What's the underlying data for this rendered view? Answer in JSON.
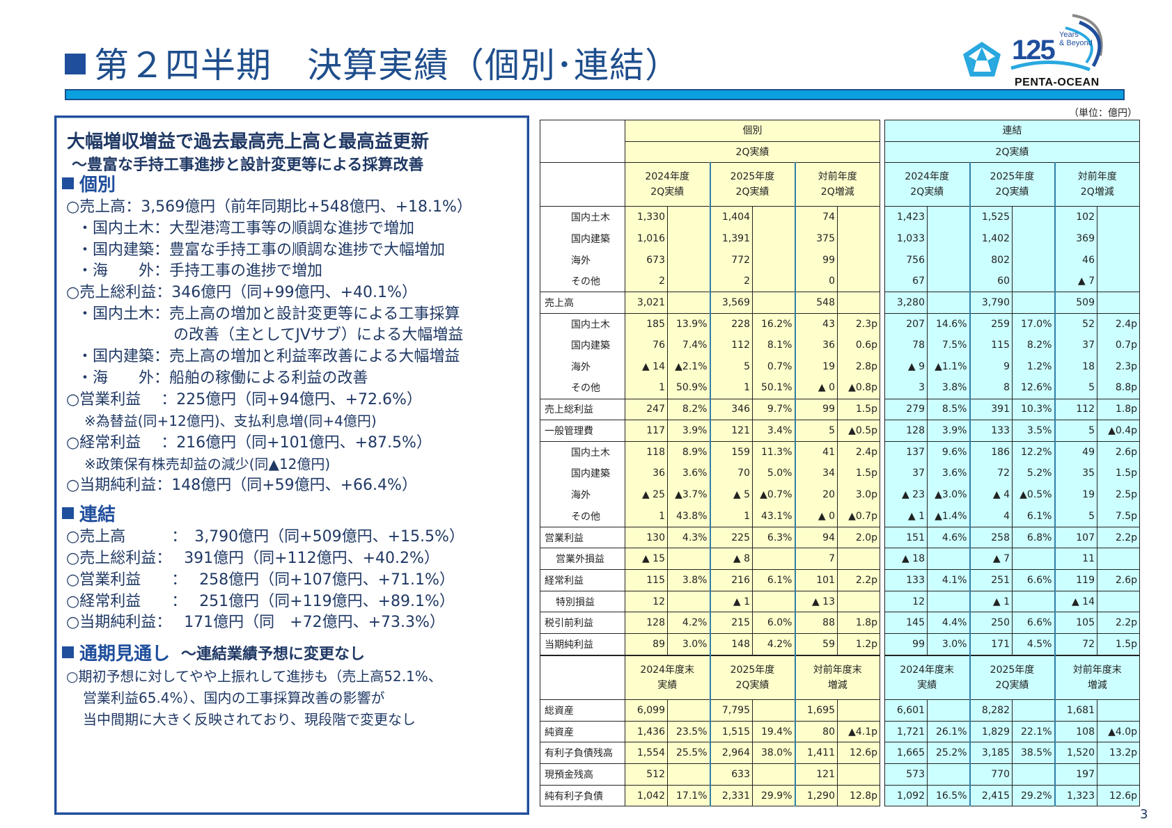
{
  "header": {
    "title": "第２四半期　決算実績（個別･連結）",
    "logo": {
      "number": "125",
      "tagline_1": "Years",
      "tagline_2": "& Beyond",
      "company": "PENTA-OCEAN"
    }
  },
  "summary": {
    "headline": "大幅増収増益で過去最高売上高と最高益更新",
    "subline": "～豊富な手持工事進捗と設計変更等による採算改善",
    "sections": [
      {
        "title": "個別",
        "lines": [
          "○売上高：3,569億円（前年同期比+548億円、+18.1%）",
          "・国内土木：大型港湾工事等の順調な進捗で増加",
          "・国内建築：豊富な手持工事の順調な進捗で大幅増加",
          "・海　　外：手持工事の進捗で増加",
          "○売上総利益：346億円（同+99億円、+40.1%）",
          "・国内土木：売上高の増加と設計変更等による工事採算",
          "の改善（主としてJVサブ）による大幅増益",
          "・国内建築：売上高の増加と利益率改善による大幅増益",
          "・海　　外：船舶の稼働による利益の改善",
          "○営業利益　 ：225億円（同+94億円、+72.6%）",
          "※為替益(同+12億円)、支払利息増(同+4億円)",
          "○経常利益　 ：216億円（同+101億円、+87.5%）",
          "※政策保有株売却益の減少(同▲12億円)",
          "○当期純利益：148億円（同+59億円、+66.4%）"
        ]
      },
      {
        "title": "連結",
        "lines": [
          "○売上高　　　：　3,790億円（同+509億円、+15.5%）",
          "○売上総利益：　   391億円（同+112億円、+40.2%）",
          "○営業利益　　：　   258億円（同+107億円、+71.1%）",
          "○経常利益　　：　   251億円（同+119億円、+89.1%）",
          "○当期純利益：　   171億円（同　+72億円、+73.3%）"
        ]
      },
      {
        "title": "通期見通し",
        "title_extra": "～連結業績予想に変更なし",
        "lines": [
          "○期初予想に対してやや上振れして進捗も（売上高52.1%、",
          "営業利益65.4%）、国内の工事採算改善の影響が",
          "当中間期に大きく反映されており、現段階で変更なし"
        ]
      }
    ]
  },
  "table": {
    "unit": "（単位：億円）",
    "group_nonconsolidated": "個別",
    "group_consolidated": "連結",
    "period_label": "2Q実績",
    "col_headers": [
      [
        "2024年度",
        "2Q実績"
      ],
      [
        "2025年度",
        "2Q実績"
      ],
      [
        "対前年度",
        "2Q増減"
      ]
    ],
    "bs_col_headers": [
      [
        "2024年度末",
        "実績"
      ],
      [
        "2025年度",
        "2Q実績"
      ],
      [
        "対前年度末",
        "増減"
      ]
    ],
    "rows": [
      {
        "label": "国内土木",
        "indent": 2,
        "nc": [
          "1,330",
          "",
          "1,404",
          "",
          "74",
          ""
        ],
        "c": [
          "1,423",
          "",
          "1,525",
          "",
          "102",
          ""
        ]
      },
      {
        "label": "国内建築",
        "indent": 2,
        "nc": [
          "1,016",
          "",
          "1,391",
          "",
          "375",
          ""
        ],
        "c": [
          "1,033",
          "",
          "1,402",
          "",
          "369",
          ""
        ]
      },
      {
        "label": "海外",
        "indent": 2,
        "nc": [
          "673",
          "",
          "772",
          "",
          "99",
          ""
        ],
        "c": [
          "756",
          "",
          "802",
          "",
          "46",
          ""
        ]
      },
      {
        "label": "その他",
        "indent": 2,
        "nc": [
          "2",
          "",
          "2",
          "",
          "0",
          ""
        ],
        "c": [
          "67",
          "",
          "60",
          "",
          "▲ 7",
          ""
        ]
      },
      {
        "label": "売上高",
        "indent": 0,
        "nc": [
          "3,021",
          "",
          "3,569",
          "",
          "548",
          ""
        ],
        "c": [
          "3,280",
          "",
          "3,790",
          "",
          "509",
          ""
        ]
      },
      {
        "label": "国内土木",
        "indent": 2,
        "nc": [
          "185",
          "13.9%",
          "228",
          "16.2%",
          "43",
          "2.3p"
        ],
        "c": [
          "207",
          "14.6%",
          "259",
          "17.0%",
          "52",
          "2.4p"
        ]
      },
      {
        "label": "国内建築",
        "indent": 2,
        "nc": [
          "76",
          "7.4%",
          "112",
          "8.1%",
          "36",
          "0.6p"
        ],
        "c": [
          "78",
          "7.5%",
          "115",
          "8.2%",
          "37",
          "0.7p"
        ]
      },
      {
        "label": "海外",
        "indent": 2,
        "nc": [
          "▲ 14",
          "▲2.1%",
          "5",
          "0.7%",
          "19",
          "2.8p"
        ],
        "c": [
          "▲ 9",
          "▲1.1%",
          "9",
          "1.2%",
          "18",
          "2.3p"
        ]
      },
      {
        "label": "その他",
        "indent": 2,
        "nc": [
          "1",
          "50.9%",
          "1",
          "50.1%",
          "▲ 0",
          "▲0.8p"
        ],
        "c": [
          "3",
          "3.8%",
          "8",
          "12.6%",
          "5",
          "8.8p"
        ]
      },
      {
        "label": "売上総利益",
        "indent": 0,
        "nc": [
          "247",
          "8.2%",
          "346",
          "9.7%",
          "99",
          "1.5p"
        ],
        "c": [
          "279",
          "8.5%",
          "391",
          "10.3%",
          "112",
          "1.8p"
        ]
      },
      {
        "label": "一般管理費",
        "indent": 0,
        "nc": [
          "117",
          "3.9%",
          "121",
          "3.4%",
          "5",
          "▲0.5p"
        ],
        "c": [
          "128",
          "3.9%",
          "133",
          "3.5%",
          "5",
          "▲0.4p"
        ]
      },
      {
        "label": "国内土木",
        "indent": 2,
        "nc": [
          "118",
          "8.9%",
          "159",
          "11.3%",
          "41",
          "2.4p"
        ],
        "c": [
          "137",
          "9.6%",
          "186",
          "12.2%",
          "49",
          "2.6p"
        ]
      },
      {
        "label": "国内建築",
        "indent": 2,
        "nc": [
          "36",
          "3.6%",
          "70",
          "5.0%",
          "34",
          "1.5p"
        ],
        "c": [
          "37",
          "3.6%",
          "72",
          "5.2%",
          "35",
          "1.5p"
        ]
      },
      {
        "label": "海外",
        "indent": 2,
        "nc": [
          "▲ 25",
          "▲3.7%",
          "▲ 5",
          "▲0.7%",
          "20",
          "3.0p"
        ],
        "c": [
          "▲ 23",
          "▲3.0%",
          "▲ 4",
          "▲0.5%",
          "19",
          "2.5p"
        ]
      },
      {
        "label": "その他",
        "indent": 2,
        "nc": [
          "1",
          "43.8%",
          "1",
          "43.1%",
          "▲ 0",
          "▲0.7p"
        ],
        "c": [
          "▲ 1",
          "▲1.4%",
          "4",
          "6.1%",
          "5",
          "7.5p"
        ]
      },
      {
        "label": "営業利益",
        "indent": 0,
        "nc": [
          "130",
          "4.3%",
          "225",
          "6.3%",
          "94",
          "2.0p"
        ],
        "c": [
          "151",
          "4.6%",
          "258",
          "6.8%",
          "107",
          "2.2p"
        ]
      },
      {
        "label": "営業外損益",
        "indent": 1,
        "nc": [
          "▲ 15",
          "",
          "▲ 8",
          "",
          "7",
          ""
        ],
        "c": [
          "▲ 18",
          "",
          "▲ 7",
          "",
          "11",
          ""
        ]
      },
      {
        "label": "経常利益",
        "indent": 0,
        "nc": [
          "115",
          "3.8%",
          "216",
          "6.1%",
          "101",
          "2.2p"
        ],
        "c": [
          "133",
          "4.1%",
          "251",
          "6.6%",
          "119",
          "2.6p"
        ]
      },
      {
        "label": "特別損益",
        "indent": 1,
        "nc": [
          "12",
          "",
          "▲ 1",
          "",
          "▲ 13",
          ""
        ],
        "c": [
          "12",
          "",
          "▲ 1",
          "",
          "▲ 14",
          ""
        ]
      },
      {
        "label": "税引前利益",
        "indent": 0,
        "nc": [
          "128",
          "4.2%",
          "215",
          "6.0%",
          "88",
          "1.8p"
        ],
        "c": [
          "145",
          "4.4%",
          "250",
          "6.6%",
          "105",
          "2.2p"
        ]
      },
      {
        "label": "当期純利益",
        "indent": 0,
        "nc": [
          "89",
          "3.0%",
          "148",
          "4.2%",
          "59",
          "1.2p"
        ],
        "c": [
          "99",
          "3.0%",
          "171",
          "4.5%",
          "72",
          "1.5p"
        ]
      }
    ],
    "bs_rows": [
      {
        "label": "総資産",
        "nc": [
          "6,099",
          "",
          "7,795",
          "",
          "1,695",
          ""
        ],
        "c": [
          "6,601",
          "",
          "8,282",
          "",
          "1,681",
          ""
        ]
      },
      {
        "label": "純資産",
        "nc": [
          "1,436",
          "23.5%",
          "1,515",
          "19.4%",
          "80",
          "▲4.1p"
        ],
        "c": [
          "1,721",
          "26.1%",
          "1,829",
          "22.1%",
          "108",
          "▲4.0p"
        ]
      },
      {
        "label": "有利子負債残高",
        "nc": [
          "1,554",
          "25.5%",
          "2,964",
          "38.0%",
          "1,411",
          "12.6p"
        ],
        "c": [
          "1,665",
          "25.2%",
          "3,185",
          "38.5%",
          "1,520",
          "13.2p"
        ]
      },
      {
        "label": "現預金残高",
        "nc": [
          "512",
          "",
          "633",
          "",
          "121",
          ""
        ],
        "c": [
          "573",
          "",
          "770",
          "",
          "197",
          ""
        ]
      },
      {
        "label": "純有利子負債",
        "nc": [
          "1,042",
          "17.1%",
          "2,331",
          "29.9%",
          "1,290",
          "12.8p"
        ],
        "c": [
          "1,092",
          "16.5%",
          "2,415",
          "29.2%",
          "1,323",
          "12.6p"
        ]
      }
    ]
  },
  "page_number": "3",
  "colors": {
    "nonconsolidated_bg": "#ffffcc",
    "consolidated_bg": "#ccffff",
    "accent_blue": "#1f4e9c",
    "rule_blue": "#0aa0e0"
  }
}
